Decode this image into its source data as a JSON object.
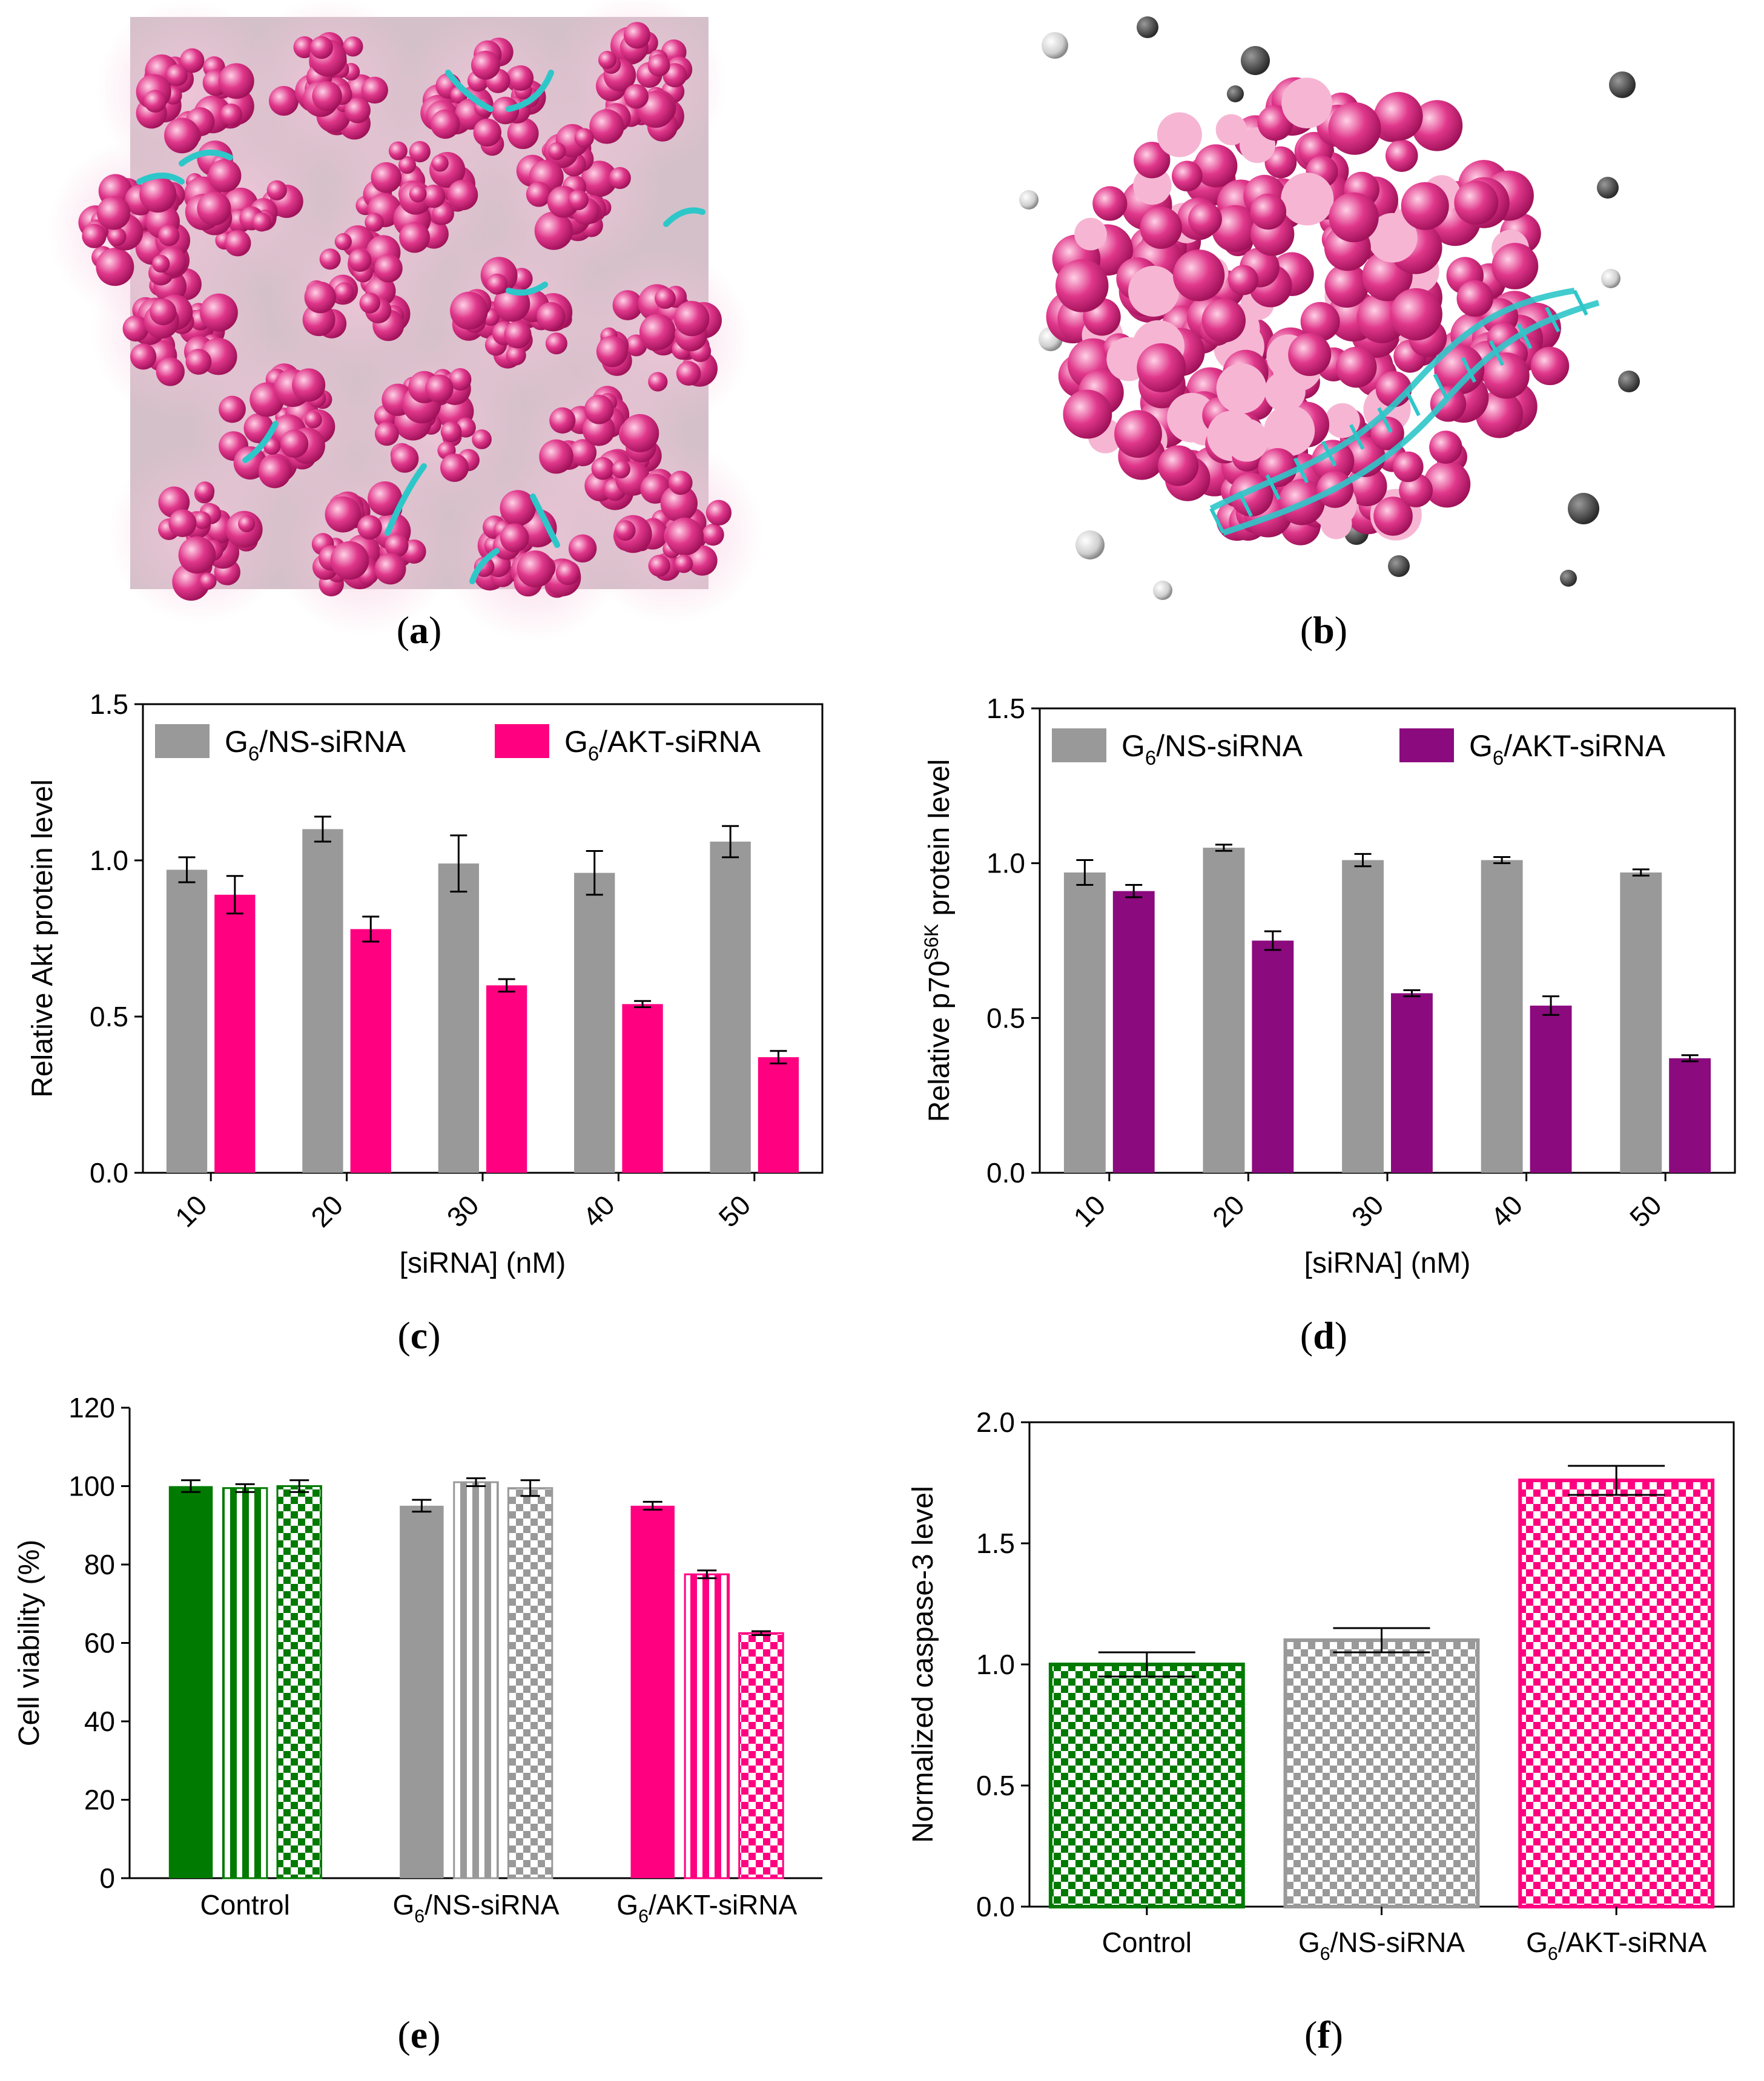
{
  "colors": {
    "gray": "#999999",
    "pink": "#ff0080",
    "purple": "#8b0a7e",
    "green": "#007a00",
    "cyan": "#2dc7c9",
    "magenta_dark": "#b0125f",
    "magenta_light": "#f2a2c6"
  },
  "panels": {
    "a": {
      "label": "a"
    },
    "b": {
      "label": "b"
    },
    "c": {
      "label": "c"
    },
    "d": {
      "label": "d"
    },
    "e": {
      "label": "e"
    },
    "f": {
      "label": "f"
    }
  },
  "chart_data": [
    {
      "id": "c",
      "type": "bar",
      "xlabel": "[siRNA] (nM)",
      "ylabel": "Relative Akt protein level",
      "ylim": [
        0,
        1.5
      ],
      "yticks": [
        "0.0",
        "0.5",
        "1.0",
        "1.5"
      ],
      "categories": [
        "10",
        "20",
        "30",
        "40",
        "50"
      ],
      "legend_position": "top",
      "series": [
        {
          "name": "NS-siRNA",
          "prefix": "G",
          "subscript": "6",
          "legend": "G6/NS-siRNA",
          "color": "#999999",
          "values": [
            0.97,
            1.1,
            0.99,
            0.96,
            1.06
          ],
          "errors": [
            0.04,
            0.04,
            0.09,
            0.07,
            0.05
          ]
        },
        {
          "name": "AKT-siRNA",
          "prefix": "G",
          "subscript": "6",
          "legend": "G6/AKT-siRNA",
          "color": "#ff0080",
          "values": [
            0.89,
            0.78,
            0.6,
            0.54,
            0.37
          ],
          "errors": [
            0.06,
            0.04,
            0.02,
            0.01,
            0.02
          ]
        }
      ]
    },
    {
      "id": "d",
      "type": "bar",
      "xlabel": "[siRNA] (nM)",
      "ylabel": "Relative p70S6K protein level",
      "ylabel_base": "Relative p70",
      "ylabel_sup": "S6K",
      "ylabel_tail": " protein level",
      "ylim": [
        0,
        1.5
      ],
      "yticks": [
        "0.0",
        "0.5",
        "1.0",
        "1.5"
      ],
      "categories": [
        "10",
        "20",
        "30",
        "40",
        "50"
      ],
      "legend_position": "top",
      "series": [
        {
          "name": "NS-siRNA",
          "prefix": "G",
          "subscript": "6",
          "legend": "G6/NS-siRNA",
          "color": "#999999",
          "values": [
            0.97,
            1.05,
            1.01,
            1.01,
            0.97
          ],
          "errors": [
            0.04,
            0.01,
            0.02,
            0.01,
            0.01
          ]
        },
        {
          "name": "AKT-siRNA",
          "prefix": "G",
          "subscript": "6",
          "legend": "G6/AKT-siRNA",
          "color": "#8b0a7e",
          "values": [
            0.91,
            0.75,
            0.58,
            0.54,
            0.37
          ],
          "errors": [
            0.02,
            0.03,
            0.01,
            0.03,
            0.01
          ]
        }
      ]
    },
    {
      "id": "e",
      "type": "bar",
      "xlabel": "",
      "ylabel": "Cell viability (%)",
      "ylim": [
        0,
        120
      ],
      "yticks": [
        "0",
        "20",
        "40",
        "60",
        "80",
        "100",
        "120"
      ],
      "groups": [
        {
          "label": "Control",
          "prefix": "",
          "subscript": "",
          "suffix": "Control",
          "color": "#007a00",
          "values": [
            100,
            99.5,
            100
          ],
          "errors": [
            1.5,
            1.0,
            1.5
          ],
          "patterns": [
            "solid",
            "stripes",
            "checker"
          ]
        },
        {
          "label": "G6/NS-siRNA",
          "prefix": "G",
          "subscript": "6",
          "suffix": "/NS-siRNA",
          "color": "#999999",
          "values": [
            95,
            101,
            99.5
          ],
          "errors": [
            1.5,
            1.0,
            2.0
          ],
          "patterns": [
            "solid",
            "stripes",
            "checker"
          ]
        },
        {
          "label": "G6/AKT-siRNA",
          "prefix": "G",
          "subscript": "6",
          "suffix": "/AKT-siRNA",
          "color": "#ff0080",
          "values": [
            95,
            77.5,
            62.5
          ],
          "errors": [
            1.0,
            1.0,
            0.5
          ],
          "patterns": [
            "solid",
            "stripes",
            "checker"
          ]
        }
      ]
    },
    {
      "id": "f",
      "type": "bar",
      "xlabel": "",
      "ylabel": "Normalized caspase-3 level",
      "ylim": [
        0,
        2.0
      ],
      "yticks": [
        "0.0",
        "0.5",
        "1.0",
        "1.5",
        "2.0"
      ],
      "categories": [
        {
          "label": "Control",
          "prefix": "",
          "subscript": "",
          "suffix": "Control",
          "color": "#007a00",
          "value": 1.0,
          "error": 0.05
        },
        {
          "label": "G6/NS-siRNA",
          "prefix": "G",
          "subscript": "6",
          "suffix": "/NS-siRNA",
          "color": "#999999",
          "value": 1.1,
          "error": 0.05
        },
        {
          "label": "G6/AKT-siRNA",
          "prefix": "G",
          "subscript": "6",
          "suffix": "/AKT-siRNA",
          "color": "#ff0080",
          "value": 1.76,
          "error": 0.06
        }
      ]
    }
  ]
}
